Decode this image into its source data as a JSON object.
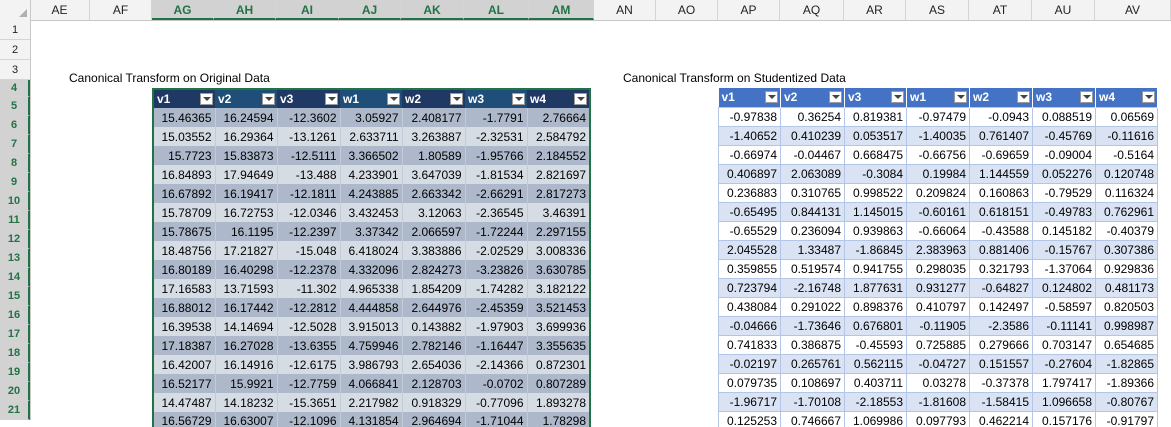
{
  "columns": [
    "AE",
    "AF",
    "AG",
    "AH",
    "AI",
    "AJ",
    "AK",
    "AL",
    "AM",
    "AN",
    "AO",
    "AP",
    "AQ",
    "AR",
    "AS",
    "AT",
    "AU",
    "AV"
  ],
  "selected_columns": [
    "AG",
    "AH",
    "AI",
    "AJ",
    "AK",
    "AL",
    "AM"
  ],
  "rows": [
    "1",
    "2",
    "3",
    "4",
    "5",
    "6",
    "7",
    "8",
    "9",
    "10",
    "11",
    "12",
    "13",
    "14",
    "15",
    "16",
    "17",
    "18",
    "19",
    "20",
    "21"
  ],
  "selected_rows": [
    "4",
    "5",
    "6",
    "7",
    "8",
    "9",
    "10",
    "11",
    "12",
    "13",
    "14",
    "15",
    "16",
    "17",
    "18",
    "19",
    "20",
    "21"
  ],
  "left_title": "Canonical Transform on Original Data",
  "right_title": "Canonical Transform on Studentized Data",
  "table_left": {
    "headers": [
      "v1",
      "v2",
      "v3",
      "w1",
      "w2",
      "w3",
      "w4"
    ],
    "rows": [
      [
        "15.46365",
        "16.24594",
        "-12.3602",
        "3.05927",
        "2.408177",
        "-1.7791",
        "2.76664"
      ],
      [
        "15.03552",
        "16.29364",
        "-13.1261",
        "2.633711",
        "3.263887",
        "-2.32531",
        "2.584792"
      ],
      [
        "15.7723",
        "15.83873",
        "-12.5111",
        "3.366502",
        "1.80589",
        "-1.95766",
        "2.184552"
      ],
      [
        "16.84893",
        "17.94649",
        "-13.488",
        "4.233901",
        "3.647039",
        "-1.81534",
        "2.821697"
      ],
      [
        "16.67892",
        "16.19417",
        "-12.1811",
        "4.243885",
        "2.663342",
        "-2.66291",
        "2.817273"
      ],
      [
        "15.78709",
        "16.72753",
        "-12.0346",
        "3.432453",
        "3.12063",
        "-2.36545",
        "3.46391"
      ],
      [
        "15.78675",
        "16.1195",
        "-12.2397",
        "3.37342",
        "2.066597",
        "-1.72244",
        "2.297155"
      ],
      [
        "18.48756",
        "17.21827",
        "-15.048",
        "6.418024",
        "3.383886",
        "-2.02529",
        "3.008336"
      ],
      [
        "16.80189",
        "16.40298",
        "-12.2378",
        "4.332096",
        "2.824273",
        "-3.23826",
        "3.630785"
      ],
      [
        "17.16583",
        "13.71593",
        "-11.302",
        "4.965338",
        "1.854209",
        "-1.74282",
        "3.182122"
      ],
      [
        "16.88012",
        "16.17442",
        "-12.2812",
        "4.444858",
        "2.644976",
        "-2.45359",
        "3.521453"
      ],
      [
        "16.39538",
        "14.14694",
        "-12.5028",
        "3.915013",
        "0.143882",
        "-1.97903",
        "3.699936"
      ],
      [
        "17.18387",
        "16.27028",
        "-13.6355",
        "4.759946",
        "2.782146",
        "-1.16447",
        "3.355635"
      ],
      [
        "16.42007",
        "16.14916",
        "-12.6175",
        "3.986793",
        "2.654036",
        "-2.14366",
        "0.872301"
      ],
      [
        "16.52177",
        "15.9921",
        "-12.7759",
        "4.066841",
        "2.128703",
        "-0.0702",
        "0.807289"
      ],
      [
        "14.47487",
        "14.18232",
        "-15.3651",
        "2.217982",
        "0.918329",
        "-0.77096",
        "1.893278"
      ],
      [
        "16.56729",
        "16.63007",
        "-12.1096",
        "4.131854",
        "2.964694",
        "-1.71044",
        "1.78298"
      ]
    ]
  },
  "table_right": {
    "headers": [
      "v1",
      "v2",
      "v3",
      "w1",
      "w2",
      "w3",
      "w4"
    ],
    "rows": [
      [
        "-0.97838",
        "0.36254",
        "0.819381",
        "-0.97479",
        "-0.0943",
        "0.088519",
        "0.06569"
      ],
      [
        "-1.40652",
        "0.410239",
        "0.053517",
        "-1.40035",
        "0.761407",
        "-0.45769",
        "-0.11616"
      ],
      [
        "-0.66974",
        "-0.04467",
        "0.668475",
        "-0.66756",
        "-0.69659",
        "-0.09004",
        "-0.5164"
      ],
      [
        "0.406897",
        "2.063089",
        "-0.3084",
        "0.19984",
        "1.144559",
        "0.052276",
        "0.120748"
      ],
      [
        "0.236883",
        "0.310765",
        "0.998522",
        "0.209824",
        "0.160863",
        "-0.79529",
        "0.116324"
      ],
      [
        "-0.65495",
        "0.844131",
        "1.145015",
        "-0.60161",
        "0.618151",
        "-0.49783",
        "0.762961"
      ],
      [
        "-0.65529",
        "0.236094",
        "0.939863",
        "-0.66064",
        "-0.43588",
        "0.145182",
        "-0.40379"
      ],
      [
        "2.045528",
        "1.33487",
        "-1.86845",
        "2.383963",
        "0.881406",
        "-0.15767",
        "0.307386"
      ],
      [
        "0.359855",
        "0.519574",
        "0.941755",
        "0.298035",
        "0.321793",
        "-1.37064",
        "0.929836"
      ],
      [
        "0.723794",
        "-2.16748",
        "1.877631",
        "0.931277",
        "-0.64827",
        "0.124802",
        "0.481173"
      ],
      [
        "0.438084",
        "0.291022",
        "0.898376",
        "0.410797",
        "0.142497",
        "-0.58597",
        "0.820503"
      ],
      [
        "-0.04666",
        "-1.73646",
        "0.676801",
        "-0.11905",
        "-2.3586",
        "-0.11141",
        "0.998987"
      ],
      [
        "0.741833",
        "0.386875",
        "-0.45593",
        "0.725885",
        "0.279666",
        "0.703147",
        "0.654685"
      ],
      [
        "-0.02197",
        "0.265761",
        "0.562115",
        "-0.04727",
        "0.151557",
        "-0.27604",
        "-1.82865"
      ],
      [
        "0.079735",
        "0.108697",
        "0.403711",
        "0.03278",
        "-0.37378",
        "1.797417",
        "-1.89366"
      ],
      [
        "-1.96717",
        "-1.70108",
        "-2.18553",
        "-1.81608",
        "-1.58415",
        "1.096658",
        "-0.80767"
      ],
      [
        "0.125253",
        "0.746667",
        "1.069986",
        "0.097793",
        "0.462214",
        "0.157176",
        "-0.91797"
      ]
    ]
  }
}
